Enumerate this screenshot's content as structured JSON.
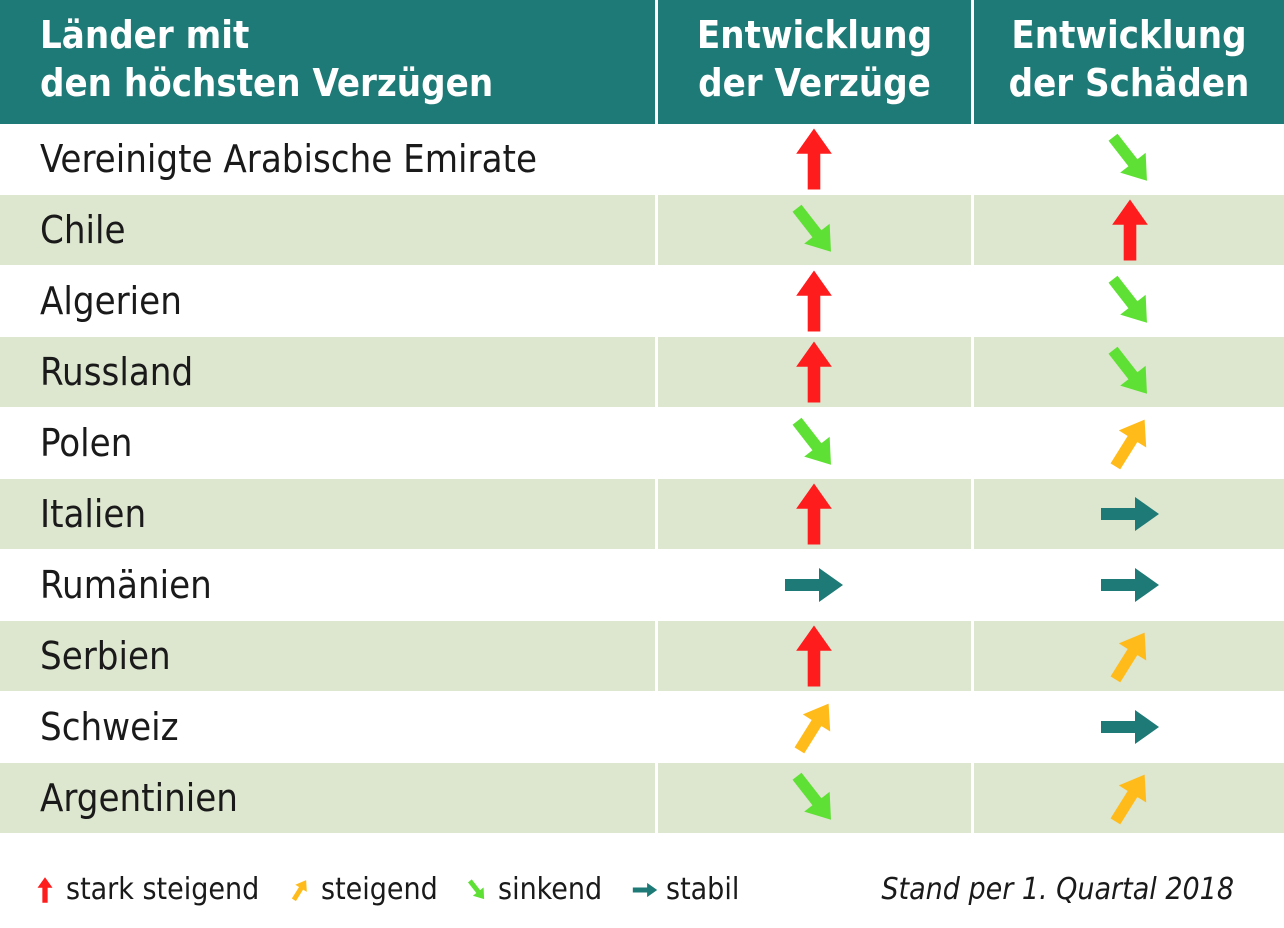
{
  "header": {
    "col1_line1": "Länder mit",
    "col1_line2": "den höchsten Verzügen",
    "col2_line1": "Entwicklung",
    "col2_line2": "der Verzüge",
    "col3_line1": "Entwicklung",
    "col3_line2": "der Schäden"
  },
  "colors": {
    "header_bg": "#1e7a76",
    "row_shaded": "#dde6cf",
    "stark_steigend": "#ff1c1c",
    "steigend": "#ffbb1a",
    "sinkend": "#5fe034",
    "stabil": "#1e7a76"
  },
  "chart_data": {
    "type": "table",
    "columns": [
      "Länder mit den höchsten Verzügen",
      "Entwicklung der Verzüge",
      "Entwicklung der Schäden"
    ],
    "rows": [
      {
        "country": "Vereinigte Arabische Emirate",
        "verzuege": "stark steigend",
        "schaeden": "sinkend"
      },
      {
        "country": "Chile",
        "verzuege": "sinkend",
        "schaeden": "stark steigend"
      },
      {
        "country": "Algerien",
        "verzuege": "stark steigend",
        "schaeden": "sinkend"
      },
      {
        "country": "Russland",
        "verzuege": "stark steigend",
        "schaeden": "sinkend"
      },
      {
        "country": "Polen",
        "verzuege": "sinkend",
        "schaeden": "steigend"
      },
      {
        "country": "Italien",
        "verzuege": "stark steigend",
        "schaeden": "stabil"
      },
      {
        "country": "Rumänien",
        "verzuege": "stabil",
        "schaeden": "stabil"
      },
      {
        "country": "Serbien",
        "verzuege": "stark steigend",
        "schaeden": "steigend"
      },
      {
        "country": "Schweiz",
        "verzuege": "steigend",
        "schaeden": "stabil"
      },
      {
        "country": "Argentinien",
        "verzuege": "sinkend",
        "schaeden": "steigend"
      }
    ],
    "legend": [
      {
        "key": "stark steigend",
        "label": "stark steigend",
        "icon": "arrow-up-icon"
      },
      {
        "key": "steigend",
        "label": "steigend",
        "icon": "arrow-up-right-icon"
      },
      {
        "key": "sinkend",
        "label": "sinkend",
        "icon": "arrow-down-right-icon"
      },
      {
        "key": "stabil",
        "label": "stabil",
        "icon": "arrow-right-icon"
      }
    ]
  },
  "footnote": "Stand per 1. Quartal 2018"
}
